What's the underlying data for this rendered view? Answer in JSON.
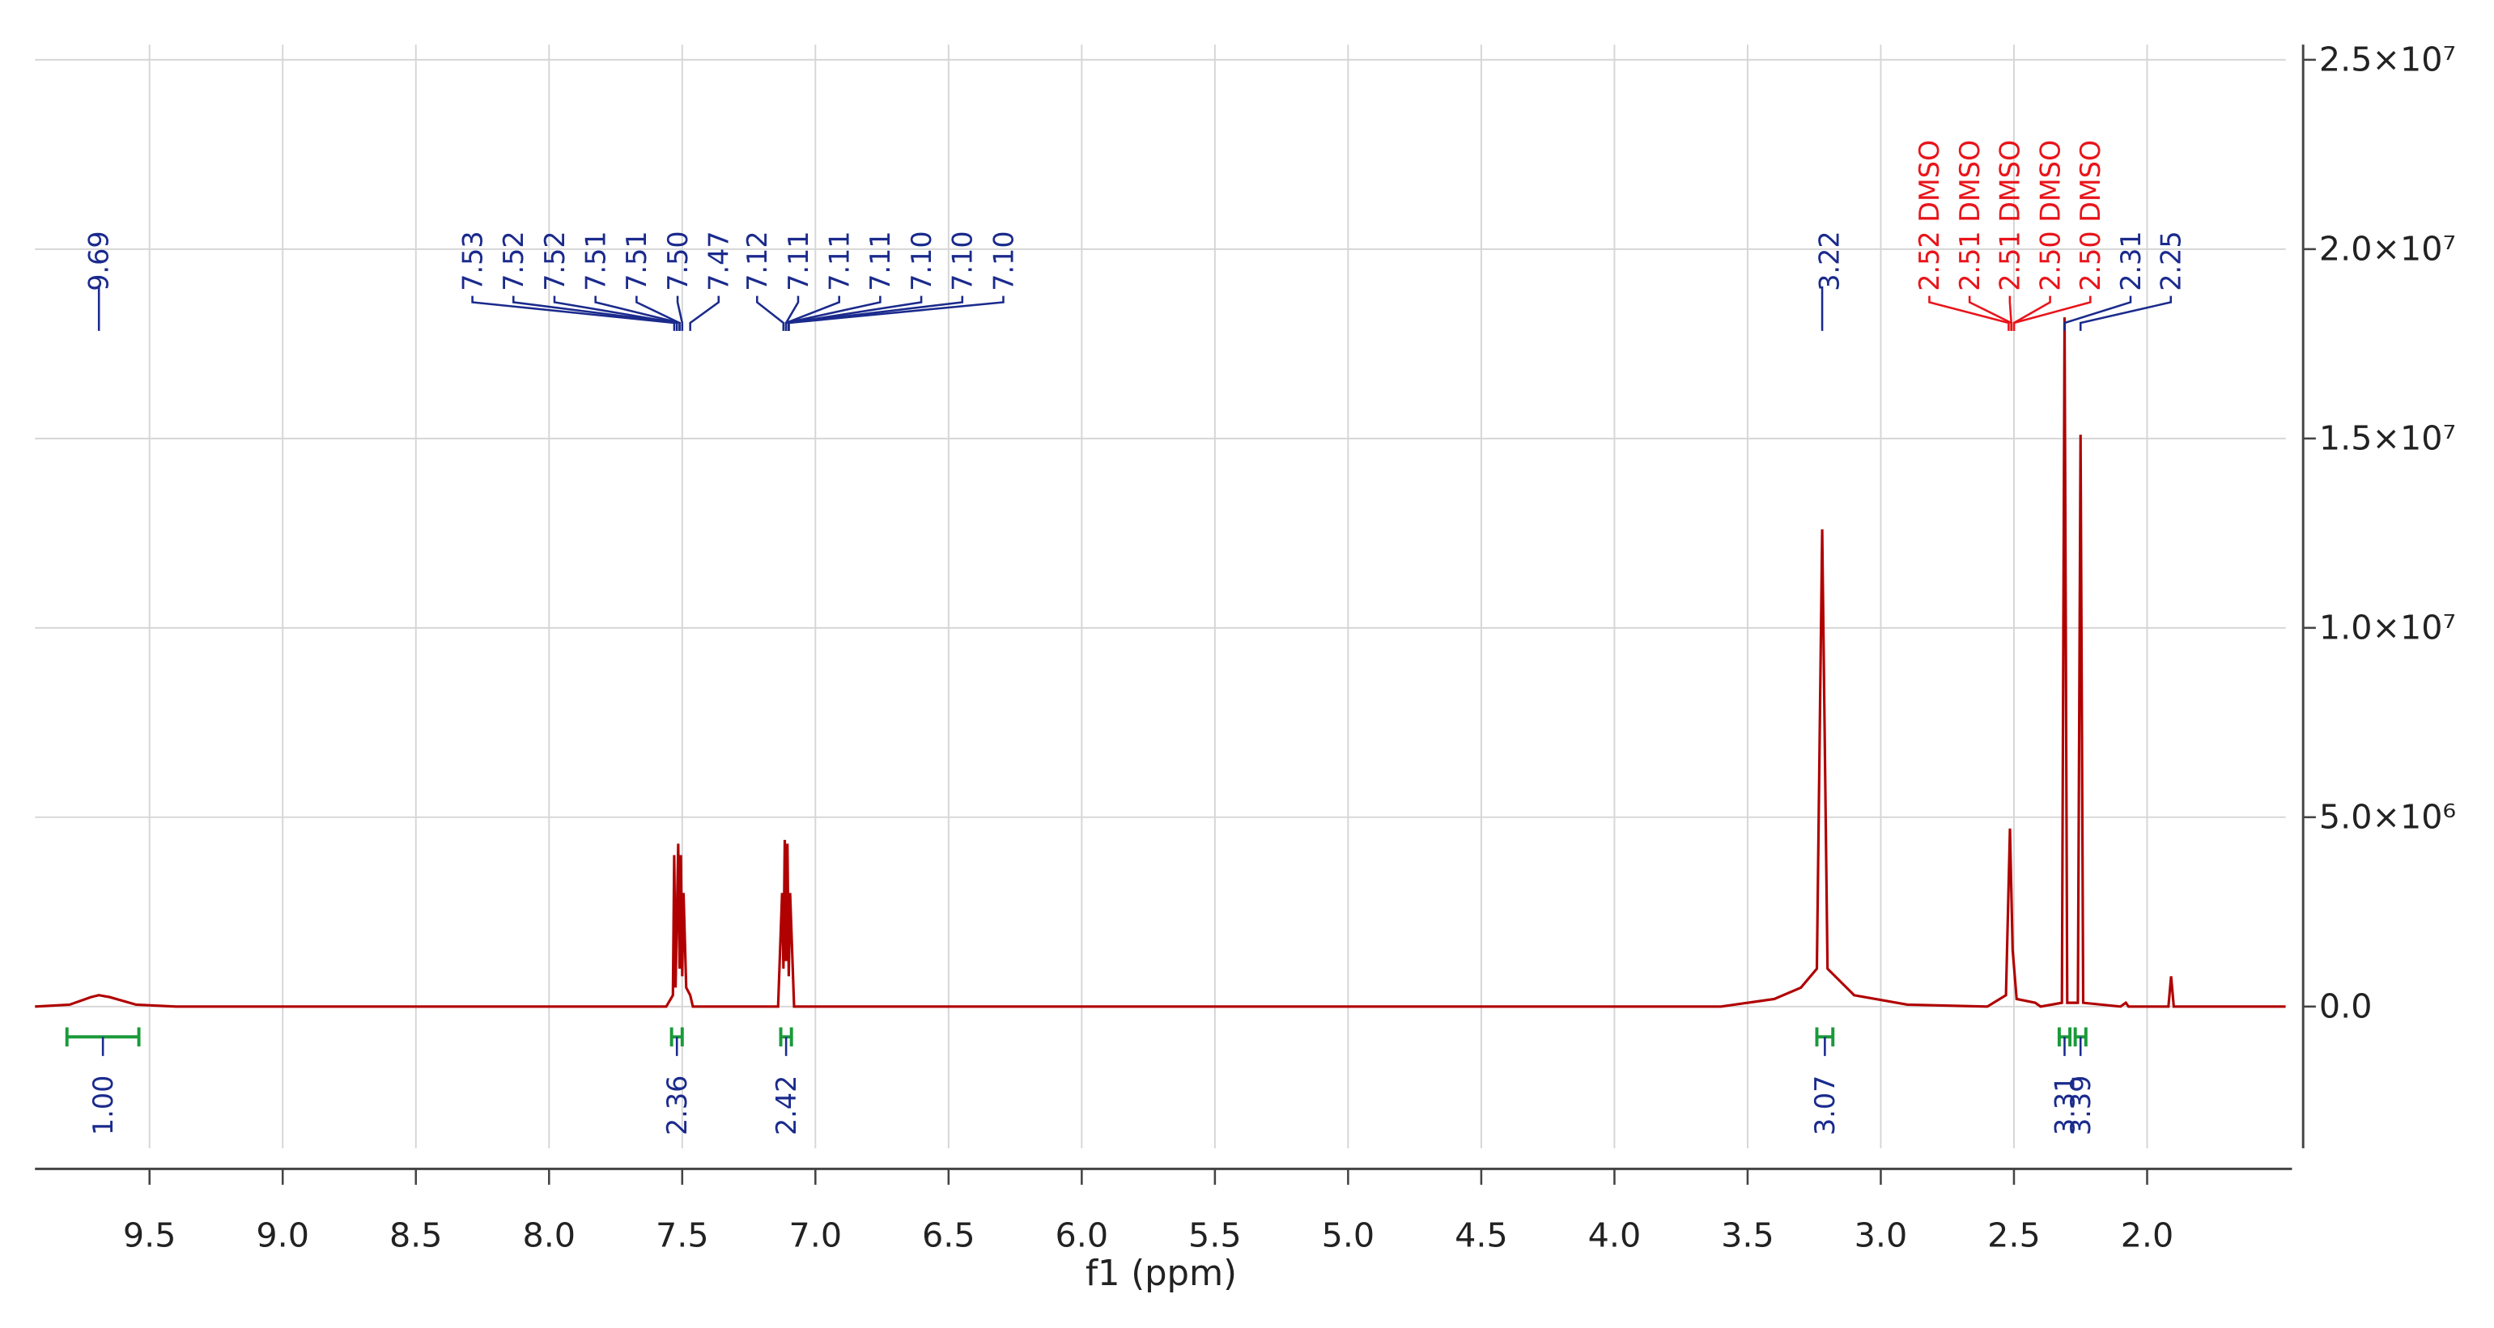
{
  "chart_data": {
    "type": "nmr",
    "x_label": "f1 (ppm)",
    "xlim": [
      9.93,
      1.48
    ],
    "xticks": [
      9.5,
      {
        "value": 9,
        "label": "9.0"
      },
      8.5,
      {
        "value": 8,
        "label": "8.0"
      },
      7.5,
      {
        "value": 7,
        "label": "7.0"
      },
      6.5,
      {
        "value": 6,
        "label": "6.0"
      },
      5.5,
      {
        "value": 5,
        "label": "5.0"
      },
      4.5,
      {
        "value": 4,
        "label": "4.0"
      },
      3.5,
      {
        "value": 3,
        "label": "3.0"
      },
      2.5,
      {
        "value": 2,
        "label": "2.0"
      }
    ],
    "ylim": [
      -3740000,
      25400000
    ],
    "yticks": [
      {
        "value": 0,
        "label": "0.0"
      },
      {
        "value": 5000000,
        "label": "5.0×10⁶"
      },
      {
        "value": 10000000,
        "label": "1.0×10⁷"
      },
      {
        "value": 15000000,
        "label": "1.5×10⁷"
      },
      {
        "value": 20000000,
        "label": "2.0×10⁷"
      },
      {
        "value": 25000000,
        "label": "2.5×10⁷"
      }
    ],
    "grid": true,
    "spectrum": {
      "color": "#b00000",
      "x": [
        9.93,
        9.8,
        9.72,
        9.69,
        9.65,
        9.55,
        9.4,
        7.56,
        7.535,
        7.53,
        7.525,
        7.515,
        7.51,
        7.505,
        7.5,
        7.495,
        7.485,
        7.47,
        7.46,
        7.14,
        7.125,
        7.12,
        7.115,
        7.11,
        7.105,
        7.1,
        7.095,
        7.08,
        3.6,
        3.4,
        3.3,
        3.24,
        3.22,
        3.2,
        3.1,
        2.9,
        2.6,
        2.53,
        2.515,
        2.505,
        2.49,
        2.42,
        2.4,
        2.32,
        2.31,
        2.3,
        2.26,
        2.25,
        2.24,
        2.1,
        2.08,
        2.07,
        1.92,
        1.91,
        1.9,
        1.48
      ],
      "values": [
        0,
        50000,
        250000,
        300000,
        250000,
        50000,
        0,
        0,
        300000,
        4000000,
        500000,
        4300000,
        1000000,
        4000000,
        800000,
        3000000,
        500000,
        300000,
        0,
        0,
        3000000,
        1000000,
        4400000,
        1200000,
        4300000,
        800000,
        3000000,
        0,
        0,
        200000,
        500000,
        1000000,
        12600000,
        1000000,
        300000,
        50000,
        0,
        300000,
        4700000,
        1500000,
        200000,
        100000,
        0,
        100000,
        18200000,
        100000,
        100000,
        15100000,
        100000,
        0,
        100000,
        0,
        0,
        800000,
        0,
        0
      ]
    },
    "peak_groups": [
      {
        "color": "#1a2a8c",
        "labels": [
          "9.69"
        ]
      },
      {
        "color": "#1a2a8c",
        "labels": [
          "7.53",
          "7.52",
          "7.52",
          "7.51",
          "7.51",
          "7.50",
          "7.47"
        ]
      },
      {
        "color": "#1a2a8c",
        "labels": [
          "7.12",
          "7.11",
          "7.11",
          "7.11",
          "7.10",
          "7.10",
          "7.10"
        ]
      },
      {
        "color": "#1a2a8c",
        "labels": [
          "3.22"
        ]
      },
      {
        "color": "#e8141a",
        "labels": [
          "2.52 DMSO",
          "2.51 DMSO",
          "2.51 DMSO",
          "2.50 DMSO",
          "2.50 DMSO"
        ]
      },
      {
        "color": "#1a2a8c",
        "labels": [
          "2.31",
          "2.25"
        ]
      }
    ],
    "integral_color": "#1a9a3a",
    "integral_label_color": "#1a2a8c",
    "integrals": [
      {
        "label": "1.00",
        "range": [
          9.81,
          9.54
        ]
      },
      {
        "label": "2.36",
        "range": [
          7.54,
          7.5
        ]
      },
      {
        "label": "2.42",
        "range": [
          7.13,
          7.09
        ]
      },
      {
        "label": "3.07",
        "range": [
          3.24,
          3.18
        ]
      },
      {
        "label": "3.31",
        "range": [
          2.33,
          2.29
        ]
      },
      {
        "label": "3.39",
        "range": [
          2.27,
          2.23
        ]
      }
    ]
  }
}
